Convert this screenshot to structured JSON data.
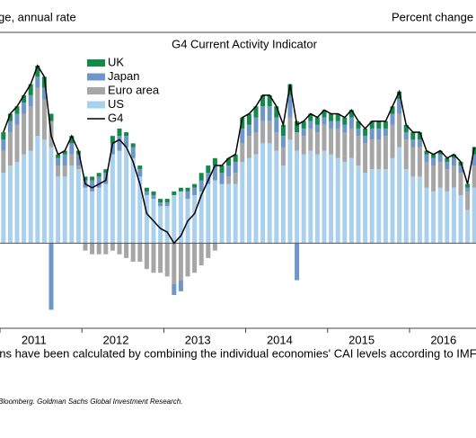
{
  "chart_data": {
    "type": "bar",
    "title": "G4 Current Activity Indicator",
    "left_axis_label": "ge, annual rate",
    "right_axis_label": "Percent change",
    "footnote": "ons have been calculated by combining the individual economies' CAI levels according to IMF PPP weig",
    "source": "Bloomberg. Goldman Sachs Global Investment Research.",
    "stacked": true,
    "categories": [
      null,
      null,
      null,
      null,
      null,
      "2011",
      null,
      null,
      null,
      null,
      null,
      null,
      null,
      null,
      null,
      null,
      null,
      "2012",
      null,
      null,
      null,
      null,
      null,
      null,
      null,
      null,
      null,
      null,
      null,
      "2013",
      null,
      null,
      null,
      null,
      null,
      null,
      null,
      null,
      null,
      null,
      null,
      "2014",
      null,
      null,
      null,
      null,
      null,
      null,
      null,
      null,
      null,
      null,
      null,
      "2015",
      null,
      null,
      null,
      null,
      null,
      null,
      null,
      null,
      null,
      null,
      null,
      "2016",
      null,
      null,
      null,
      null
    ],
    "ylim": [
      -2.3,
      5.7
    ],
    "series": [
      {
        "name": "US",
        "color": "#a9d1ee",
        "values": [
          1.9,
          2.1,
          2.2,
          2.4,
          2.5,
          2.9,
          2.8,
          2.6,
          1.8,
          1.8,
          2.1,
          2.0,
          1.5,
          1.4,
          1.5,
          1.6,
          2.4,
          2.5,
          2.6,
          2.3,
          1.8,
          1.3,
          1.2,
          1.0,
          1.0,
          1.3,
          1.4,
          1.2,
          1.3,
          1.4,
          1.6,
          1.7,
          1.6,
          1.6,
          1.6,
          2.2,
          2.3,
          2.4,
          2.7,
          2.7,
          2.5,
          2.1,
          2.8,
          2.5,
          2.4,
          2.5,
          2.4,
          2.5,
          2.4,
          2.3,
          2.2,
          2.3,
          2.1,
          1.9,
          2.0,
          2.0,
          2.0,
          2.3,
          2.6,
          2.0,
          1.8,
          1.8,
          1.5,
          1.4,
          1.5,
          1.4,
          1.5,
          1.3,
          0.9,
          1.5
        ]
      },
      {
        "name": "Euro area",
        "color": "#a6a6a6",
        "values": [
          0.6,
          0.9,
          1.0,
          1.1,
          1.2,
          1.3,
          1.1,
          0.7,
          0.3,
          0.3,
          0.3,
          0.1,
          -0.2,
          -0.3,
          -0.3,
          -0.3,
          -0.2,
          -0.3,
          -0.4,
          -0.5,
          -0.5,
          -0.7,
          -0.8,
          -0.8,
          -0.9,
          -1.1,
          -1.0,
          -0.9,
          -0.8,
          -0.6,
          -0.4,
          -0.2,
          0.0,
          0.2,
          0.3,
          0.5,
          0.6,
          0.6,
          0.6,
          0.6,
          0.5,
          0.5,
          0.6,
          0.5,
          0.5,
          0.6,
          0.6,
          0.7,
          0.7,
          0.8,
          0.8,
          0.8,
          0.8,
          0.8,
          0.8,
          0.8,
          0.9,
          0.9,
          0.9,
          0.8,
          0.8,
          0.8,
          0.7,
          0.7,
          0.7,
          0.6,
          0.6,
          0.6,
          0.5,
          0.6
        ]
      },
      {
        "name": "Japan",
        "color": "#6f96c8",
        "values": [
          0.3,
          0.3,
          0.3,
          0.3,
          0.3,
          0.3,
          0.3,
          -1.8,
          0.2,
          0.3,
          0.3,
          0.3,
          0.2,
          0.3,
          0.3,
          0.3,
          0.3,
          0.4,
          0.3,
          0.3,
          0.2,
          0.1,
          0.1,
          0.1,
          0.1,
          -0.3,
          -0.3,
          0.2,
          0.2,
          0.3,
          0.3,
          0.4,
          0.3,
          0.3,
          0.3,
          0.4,
          0.3,
          0.4,
          0.4,
          0.4,
          0.4,
          0.3,
          0.6,
          -1.0,
          0.2,
          0.2,
          0.2,
          0.2,
          0.2,
          0.2,
          0.2,
          0.3,
          0.2,
          0.2,
          0.3,
          0.3,
          0.2,
          0.3,
          0.4,
          0.2,
          0.2,
          0.2,
          0.2,
          0.2,
          0.2,
          0.2,
          0.2,
          0.2,
          0.1,
          0.3
        ]
      },
      {
        "name": "UK",
        "color": "#138a4a",
        "values": [
          0.2,
          0.2,
          0.2,
          0.2,
          0.3,
          0.3,
          0.3,
          0.2,
          0.1,
          0.1,
          0.2,
          0.1,
          0.1,
          0.1,
          0.1,
          0.1,
          0.2,
          0.2,
          0.1,
          0.1,
          0.1,
          0.1,
          0.1,
          0.1,
          0.1,
          0.1,
          0.1,
          0.1,
          0.1,
          0.2,
          0.2,
          0.2,
          0.2,
          0.2,
          0.2,
          0.3,
          0.3,
          0.3,
          0.3,
          0.3,
          0.3,
          0.3,
          0.3,
          0.3,
          0.2,
          0.2,
          0.2,
          0.2,
          0.2,
          0.2,
          0.2,
          0.2,
          0.2,
          0.2,
          0.2,
          0.2,
          0.2,
          0.2,
          0.2,
          0.2,
          0.2,
          0.2,
          0.1,
          0.1,
          0.1,
          0.1,
          0.1,
          0.1,
          0.1,
          0.2
        ]
      },
      {
        "name": "G4",
        "color": "#000000",
        "type": "line",
        "values": [
          3.0,
          3.5,
          3.7,
          4.0,
          4.3,
          4.8,
          4.5,
          2.9,
          2.4,
          2.5,
          2.9,
          2.5,
          1.6,
          1.5,
          1.6,
          1.7,
          2.7,
          2.8,
          2.6,
          2.2,
          1.6,
          0.8,
          0.6,
          0.4,
          0.3,
          0.0,
          0.2,
          0.6,
          0.8,
          1.3,
          1.7,
          2.1,
          2.1,
          2.3,
          2.4,
          3.4,
          3.5,
          3.7,
          4.0,
          4.0,
          3.7,
          3.2,
          4.3,
          3.2,
          3.3,
          3.5,
          3.4,
          3.6,
          3.5,
          3.5,
          3.4,
          3.6,
          3.3,
          3.1,
          3.3,
          3.3,
          3.3,
          3.7,
          4.1,
          3.2,
          3.0,
          3.0,
          2.5,
          2.4,
          2.5,
          2.3,
          2.4,
          2.2,
          1.6,
          2.6
        ]
      }
    ]
  }
}
